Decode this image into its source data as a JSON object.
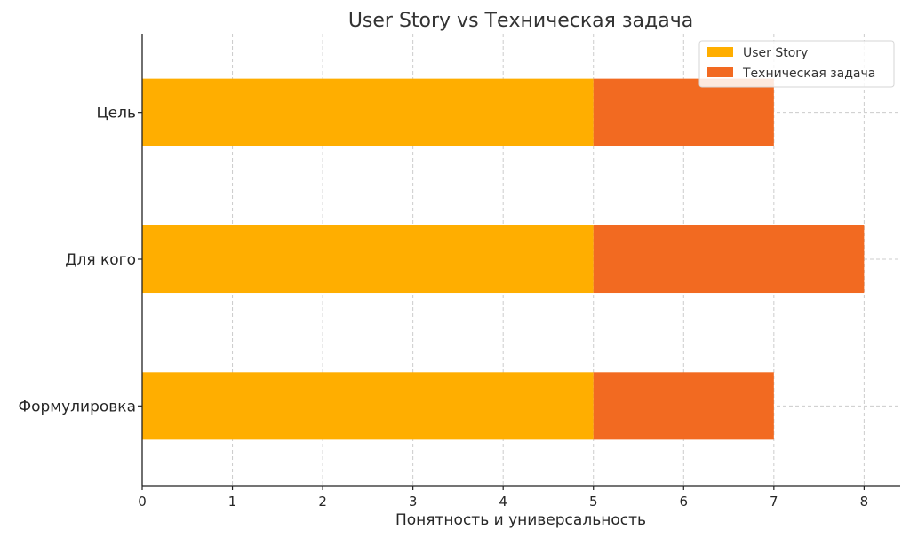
{
  "chart_data": {
    "type": "bar",
    "orientation": "horizontal",
    "stacked": true,
    "title": "User Story vs Техническая задача",
    "xlabel": "Понятность и универсальность",
    "ylabel": "",
    "categories": [
      "Формулировка",
      "Для кого",
      "Цель"
    ],
    "series": [
      {
        "name": "User Story",
        "values": [
          5,
          5,
          5
        ],
        "color": "#FFAE00"
      },
      {
        "name": "Техническая задача",
        "values": [
          2,
          3,
          2
        ],
        "color": "#F26A21"
      }
    ],
    "xlim": [
      0,
      8.4
    ],
    "xticks": [
      "0",
      "1",
      "2",
      "3",
      "4",
      "5",
      "6",
      "7",
      "8"
    ],
    "grid": true,
    "legend_position": "top-right"
  }
}
